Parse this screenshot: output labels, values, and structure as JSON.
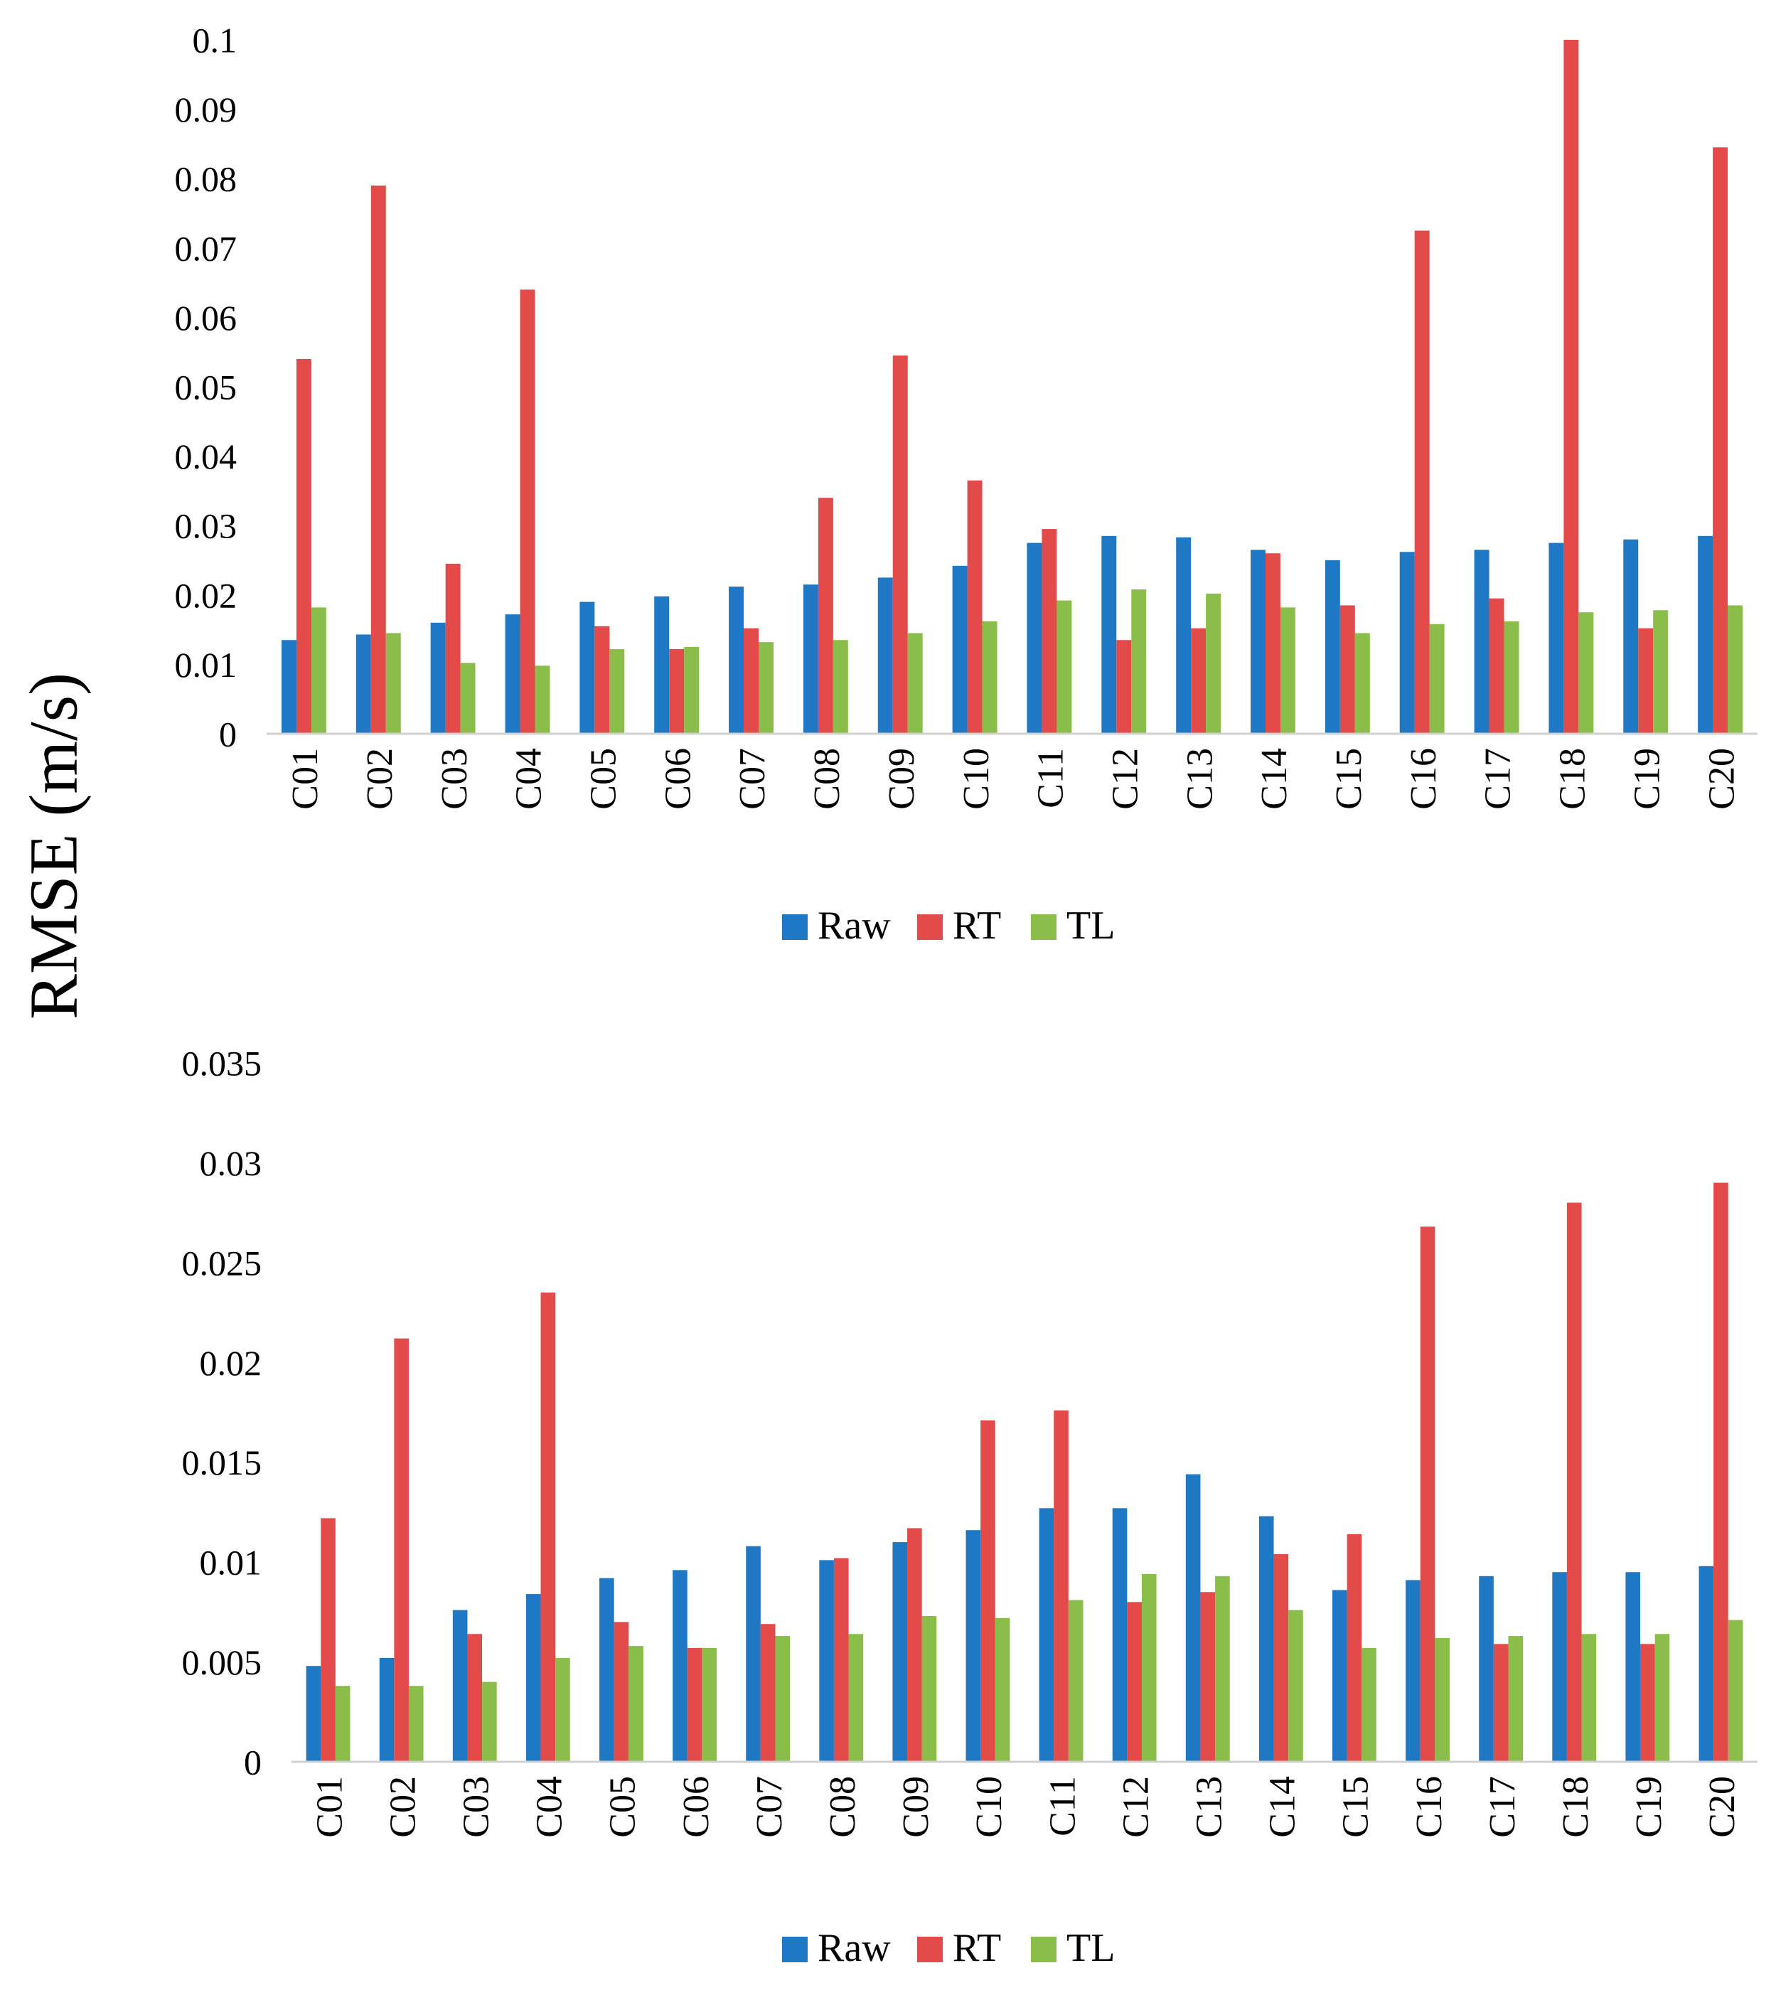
{
  "shared_ylabel": "RMSE (m/s)",
  "colors": {
    "Raw": "#1f78c4",
    "RT": "#e34a4a",
    "TL": "#8bbd4a"
  },
  "chart_data": [
    {
      "type": "bar",
      "title": "",
      "xlabel": "",
      "ylabel": "RMSE (m/s)",
      "ylim": [
        0,
        0.1
      ],
      "yticks": [
        0,
        0.01,
        0.02,
        0.03,
        0.04,
        0.05,
        0.06,
        0.07,
        0.08,
        0.09,
        0.1
      ],
      "ytick_labels": [
        "0",
        "0.01",
        "0.02",
        "0.03",
        "0.04",
        "0.05",
        "0.06",
        "0.07",
        "0.08",
        "0.09",
        "0.1"
      ],
      "grid": false,
      "legend": "bottom-center",
      "categories": [
        "C01",
        "C02",
        "C03",
        "C04",
        "C05",
        "C06",
        "C07",
        "C08",
        "C09",
        "C10",
        "C11",
        "C12",
        "C13",
        "C14",
        "C15",
        "C16",
        "C17",
        "C18",
        "C19",
        "C20"
      ],
      "series": [
        {
          "name": "Raw",
          "values": [
            0.0135,
            0.0143,
            0.016,
            0.0172,
            0.019,
            0.0198,
            0.0212,
            0.0215,
            0.0225,
            0.0242,
            0.0275,
            0.0285,
            0.0283,
            0.0265,
            0.025,
            0.0262,
            0.0265,
            0.0275,
            0.028,
            0.0285
          ]
        },
        {
          "name": "RT",
          "values": [
            0.054,
            0.079,
            0.0245,
            0.064,
            0.0155,
            0.0122,
            0.0152,
            0.034,
            0.0545,
            0.0365,
            0.0295,
            0.0135,
            0.0152,
            0.026,
            0.0185,
            0.0725,
            0.0195,
            0.1,
            0.0152,
            0.0845
          ]
        },
        {
          "name": "TL",
          "values": [
            0.0182,
            0.0145,
            0.0102,
            0.0098,
            0.0122,
            0.0125,
            0.0132,
            0.0135,
            0.0145,
            0.0162,
            0.0192,
            0.0208,
            0.0202,
            0.0182,
            0.0145,
            0.0158,
            0.0162,
            0.0175,
            0.0178,
            0.0185
          ]
        }
      ]
    },
    {
      "type": "bar",
      "title": "",
      "xlabel": "",
      "ylabel": "RMSE (m/s)",
      "ylim": [
        0,
        0.035
      ],
      "yticks": [
        0,
        0.005,
        0.01,
        0.015,
        0.02,
        0.025,
        0.03,
        0.035
      ],
      "ytick_labels": [
        "0",
        "0.005",
        "0.01",
        "0.015",
        "0.02",
        "0.025",
        "0.03",
        "0.035"
      ],
      "grid": false,
      "legend": "bottom-center",
      "categories": [
        "C01",
        "C02",
        "C03",
        "C04",
        "C05",
        "C06",
        "C07",
        "C08",
        "C09",
        "C10",
        "C11",
        "C12",
        "C13",
        "C14",
        "C15",
        "C16",
        "C17",
        "C18",
        "C19",
        "C20"
      ],
      "series": [
        {
          "name": "Raw",
          "values": [
            0.0048,
            0.0052,
            0.0076,
            0.0084,
            0.0092,
            0.0096,
            0.0108,
            0.0101,
            0.011,
            0.0116,
            0.0127,
            0.0127,
            0.0144,
            0.0123,
            0.0086,
            0.0091,
            0.0093,
            0.0095,
            0.0095,
            0.0098
          ]
        },
        {
          "name": "RT",
          "values": [
            0.0122,
            0.0212,
            0.0064,
            0.0235,
            0.007,
            0.0057,
            0.0069,
            0.0102,
            0.0117,
            0.0171,
            0.0176,
            0.008,
            0.0085,
            0.0104,
            0.0114,
            0.0268,
            0.0059,
            0.028,
            0.0059,
            0.029
          ]
        },
        {
          "name": "TL",
          "values": [
            0.0038,
            0.0038,
            0.004,
            0.0052,
            0.0058,
            0.0057,
            0.0063,
            0.0064,
            0.0073,
            0.0072,
            0.0081,
            0.0094,
            0.0093,
            0.0076,
            0.0057,
            0.0062,
            0.0063,
            0.0064,
            0.0064,
            0.0071
          ]
        }
      ]
    }
  ]
}
